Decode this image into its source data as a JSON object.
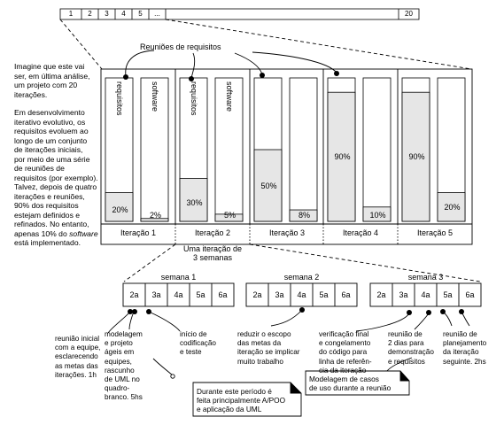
{
  "iteration_strip": [
    "1",
    "2",
    "3",
    "4",
    "5",
    "...",
    "20"
  ],
  "title_reunioes": "Reuniões de requisitos",
  "left_text": [
    "Imagine que este vai",
    "ser, em última análise,",
    "um projeto com 20",
    "iterações.",
    "",
    "Em desenvolvimento",
    "iterativo evolutivo, os",
    "requisitos evoluem ao",
    "longo de um conjunto",
    "de iterações iniciais,",
    "por meio de uma série",
    "de reuniões de",
    "requisitos (por exemplo).",
    "Talvez, depois de quatro",
    "iterações e reuniões,",
    "90% dos requisitos",
    "estejam definidos e",
    "refinados. No entanto,",
    "apenas 10% do software",
    "está implementado."
  ],
  "bar_labels": {
    "req": "requisitos",
    "soft": "software"
  },
  "iterations": [
    {
      "label": "Iteração 1",
      "req_pct": "20%",
      "soft_pct": "2%"
    },
    {
      "label": "Iteração 2",
      "req_pct": "30%",
      "soft_pct": "5%"
    },
    {
      "label": "Iteração 3",
      "req_pct": "50%",
      "soft_pct": "8%"
    },
    {
      "label": "Iteração 4",
      "req_pct": "90%",
      "soft_pct": "10%"
    },
    {
      "label": "Iteração 5",
      "req_pct": "90%",
      "soft_pct": "20%"
    }
  ],
  "chart_data": {
    "type": "bar",
    "categories": [
      "Iteração 1",
      "Iteração 2",
      "Iteração 3",
      "Iteração 4",
      "Iteração 5"
    ],
    "series": [
      {
        "name": "requisitos",
        "values": [
          20,
          30,
          50,
          90,
          90
        ]
      },
      {
        "name": "software",
        "values": [
          2,
          5,
          8,
          10,
          20
        ]
      }
    ],
    "ylim": [
      0,
      100
    ]
  },
  "iteration_note": [
    "Uma iteração de",
    "3 semanas"
  ],
  "weeks": [
    {
      "label": "semana 1",
      "days": [
        "2a",
        "3a",
        "4a",
        "5a",
        "6a"
      ]
    },
    {
      "label": "semana 2",
      "days": [
        "2a",
        "3a",
        "4a",
        "5a",
        "6a"
      ]
    },
    {
      "label": "semana 3",
      "days": [
        "2a",
        "3a",
        "4a",
        "5a",
        "6a"
      ]
    }
  ],
  "annotations": {
    "a1": [
      "reunião inicial",
      "com a equipe,",
      "esclarecendo",
      "as metas das",
      "iterações. 1h"
    ],
    "a2": [
      "modelagem",
      "e projeto",
      "ágeis em",
      "equipes,",
      "rascunho",
      "de UML no",
      "quadro-",
      "branco. 5hs"
    ],
    "a3": [
      "início de",
      "codificação",
      "e teste"
    ],
    "a4": [
      "reduzir o escopo",
      "das metas da",
      "iteração se implicar",
      "muito trabalho"
    ],
    "a5": [
      "verificação final",
      "e congelamento",
      "do código para",
      "linha de referên-",
      "cia da iteração"
    ],
    "a6": [
      "reunião de",
      "2 dias para",
      "demonstração",
      "e requisitos"
    ],
    "a7": [
      "reunião de",
      "planejamento",
      "da iteração",
      "seguinte. 2hs"
    ]
  },
  "notes": {
    "n1": [
      "Durante este período é",
      "feita principalmente A/POO",
      "e aplicação da UML"
    ],
    "n2": [
      "Modelagem de casos",
      "de uso durante a reunião"
    ]
  }
}
